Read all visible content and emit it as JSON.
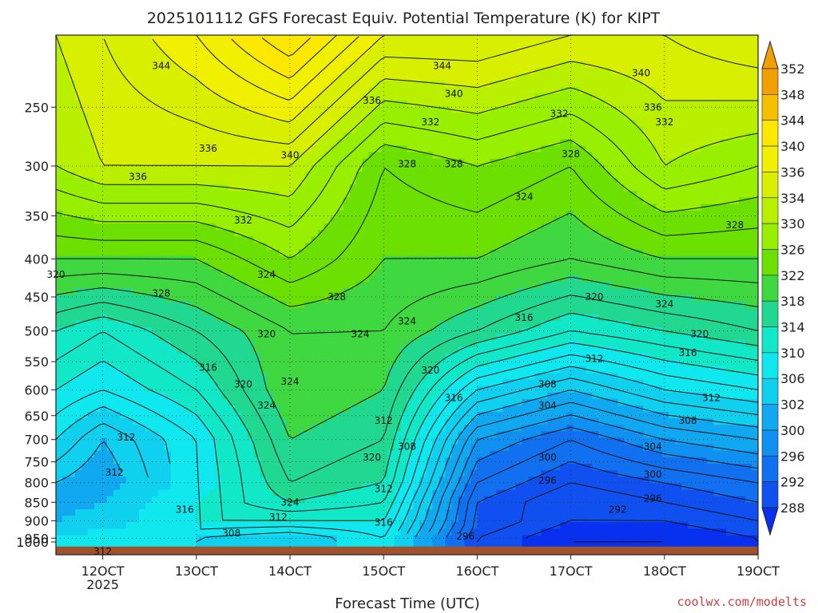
{
  "chart_data": {
    "type": "heatmap",
    "title": "2025101112 GFS Forecast Equiv. Potential Temperature (K) for KIPT",
    "xlabel": "Forecast Time (UTC)",
    "ylabel": "",
    "x_ticks": [
      "12OCT",
      "13OCT",
      "14OCT",
      "15OCT",
      "16OCT",
      "17OCT",
      "18OCT",
      "19OCT"
    ],
    "x_tick_sublabel": "2025",
    "x_range": [
      "11OCT 12Z",
      "19OCT 00Z"
    ],
    "y_ticks": [
      250,
      300,
      350,
      400,
      450,
      500,
      550,
      600,
      650,
      700,
      750,
      800,
      850,
      900,
      950,
      1000
    ],
    "y_range": [
      200,
      1000
    ],
    "y_log_scale": true,
    "grid": true,
    "colorbar": {
      "levels": [
        352,
        348,
        344,
        340,
        336,
        334,
        330,
        326,
        322,
        318,
        314,
        310,
        306,
        302,
        300,
        296,
        292,
        288
      ],
      "colors": [
        "#f0a000",
        "#f5c000",
        "#ffe800",
        "#f0f000",
        "#d8f000",
        "#b8f000",
        "#98f000",
        "#6ce000",
        "#40d840",
        "#20d890",
        "#10e8c8",
        "#10e8f0",
        "#10d0f0",
        "#10a8f0",
        "#1090f0",
        "#1070f0",
        "#1050f0",
        "#0830f0"
      ],
      "extend": "both",
      "placement": "right"
    },
    "profiles": [
      {
        "time": "11OCT 12Z",
        "theta_e": [
          {
            "p": 200,
            "v": 336
          },
          {
            "p": 300,
            "v": 334
          },
          {
            "p": 400,
            "v": 326
          },
          {
            "p": 500,
            "v": 318
          },
          {
            "p": 600,
            "v": 314
          },
          {
            "p": 700,
            "v": 310
          },
          {
            "p": 800,
            "v": 306
          },
          {
            "p": 850,
            "v": 304
          },
          {
            "p": 900,
            "v": 306
          },
          {
            "p": 950,
            "v": 310
          }
        ]
      },
      {
        "time": "12OCT 00Z",
        "theta_e": [
          {
            "p": 200,
            "v": 338
          },
          {
            "p": 300,
            "v": 336
          },
          {
            "p": 400,
            "v": 326
          },
          {
            "p": 500,
            "v": 316
          },
          {
            "p": 600,
            "v": 312
          },
          {
            "p": 700,
            "v": 306
          },
          {
            "p": 800,
            "v": 304
          },
          {
            "p": 850,
            "v": 306
          },
          {
            "p": 900,
            "v": 308
          },
          {
            "p": 950,
            "v": 312
          }
        ]
      },
      {
        "time": "13OCT 00Z",
        "theta_e": [
          {
            "p": 200,
            "v": 342
          },
          {
            "p": 300,
            "v": 336
          },
          {
            "p": 400,
            "v": 326
          },
          {
            "p": 500,
            "v": 320
          },
          {
            "p": 600,
            "v": 316
          },
          {
            "p": 700,
            "v": 312
          },
          {
            "p": 800,
            "v": 312
          },
          {
            "p": 850,
            "v": 314
          },
          {
            "p": 900,
            "v": 314
          },
          {
            "p": 950,
            "v": 310
          }
        ]
      },
      {
        "time": "14OCT 00Z",
        "theta_e": [
          {
            "p": 200,
            "v": 348
          },
          {
            "p": 300,
            "v": 336
          },
          {
            "p": 400,
            "v": 330
          },
          {
            "p": 500,
            "v": 324
          },
          {
            "p": 600,
            "v": 324
          },
          {
            "p": 700,
            "v": 322
          },
          {
            "p": 800,
            "v": 320
          },
          {
            "p": 850,
            "v": 318
          },
          {
            "p": 900,
            "v": 314
          },
          {
            "p": 950,
            "v": 308
          }
        ]
      },
      {
        "time": "15OCT 00Z",
        "theta_e": [
          {
            "p": 200,
            "v": 340
          },
          {
            "p": 300,
            "v": 328
          },
          {
            "p": 400,
            "v": 326
          },
          {
            "p": 500,
            "v": 324
          },
          {
            "p": 600,
            "v": 322
          },
          {
            "p": 700,
            "v": 320
          },
          {
            "p": 800,
            "v": 318
          },
          {
            "p": 850,
            "v": 316
          },
          {
            "p": 900,
            "v": 314
          },
          {
            "p": 950,
            "v": 312
          }
        ]
      },
      {
        "time": "16OCT 00Z",
        "theta_e": [
          {
            "p": 200,
            "v": 340
          },
          {
            "p": 300,
            "v": 330
          },
          {
            "p": 400,
            "v": 326
          },
          {
            "p": 500,
            "v": 320
          },
          {
            "p": 600,
            "v": 310
          },
          {
            "p": 700,
            "v": 302
          },
          {
            "p": 800,
            "v": 298
          },
          {
            "p": 850,
            "v": 296
          },
          {
            "p": 900,
            "v": 296
          },
          {
            "p": 950,
            "v": 294
          }
        ]
      },
      {
        "time": "17OCT 00Z",
        "theta_e": [
          {
            "p": 200,
            "v": 338
          },
          {
            "p": 300,
            "v": 328
          },
          {
            "p": 400,
            "v": 324
          },
          {
            "p": 500,
            "v": 316
          },
          {
            "p": 600,
            "v": 306
          },
          {
            "p": 700,
            "v": 298
          },
          {
            "p": 800,
            "v": 294
          },
          {
            "p": 850,
            "v": 292
          },
          {
            "p": 900,
            "v": 292
          },
          {
            "p": 950,
            "v": 290
          }
        ]
      },
      {
        "time": "18OCT 00Z",
        "theta_e": [
          {
            "p": 200,
            "v": 338
          },
          {
            "p": 300,
            "v": 334
          },
          {
            "p": 400,
            "v": 326
          },
          {
            "p": 500,
            "v": 318
          },
          {
            "p": 600,
            "v": 310
          },
          {
            "p": 700,
            "v": 302
          },
          {
            "p": 800,
            "v": 296
          },
          {
            "p": 850,
            "v": 294
          },
          {
            "p": 900,
            "v": 292
          },
          {
            "p": 950,
            "v": 290
          }
        ]
      },
      {
        "time": "19OCT 00Z",
        "theta_e": [
          {
            "p": 200,
            "v": 340
          },
          {
            "p": 300,
            "v": 332
          },
          {
            "p": 400,
            "v": 326
          },
          {
            "p": 500,
            "v": 320
          },
          {
            "p": 600,
            "v": 312
          },
          {
            "p": 700,
            "v": 304
          },
          {
            "p": 800,
            "v": 298
          },
          {
            "p": 850,
            "v": 296
          },
          {
            "p": 900,
            "v": 294
          },
          {
            "p": 950,
            "v": 292
          }
        ]
      }
    ],
    "contour_labels": [
      {
        "text": "344",
        "time": "12OCT 15Z",
        "p": 220
      },
      {
        "text": "344",
        "time": "15OCT 15Z",
        "p": 220
      },
      {
        "text": "340",
        "time": "17OCT 18Z",
        "p": 225
      },
      {
        "text": "340",
        "time": "15OCT 18Z",
        "p": 240
      },
      {
        "text": "336",
        "time": "14OCT 21Z",
        "p": 245
      },
      {
        "text": "332",
        "time": "15OCT 12Z",
        "p": 262
      },
      {
        "text": "332",
        "time": "16OCT 21Z",
        "p": 255
      },
      {
        "text": "336",
        "time": "17OCT 21Z",
        "p": 250
      },
      {
        "text": "332",
        "time": "18OCT 00Z",
        "p": 262
      },
      {
        "text": "336",
        "time": "13OCT 03Z",
        "p": 284
      },
      {
        "text": "340",
        "time": "14OCT 00Z",
        "p": 290
      },
      {
        "text": "328",
        "time": "17OCT 00Z",
        "p": 289
      },
      {
        "text": "336",
        "time": "12OCT 09Z",
        "p": 310
      },
      {
        "text": "328",
        "time": "15OCT 06Z",
        "p": 298
      },
      {
        "text": "328",
        "time": "15OCT 18Z",
        "p": 298
      },
      {
        "text": "324",
        "time": "16OCT 12Z",
        "p": 330
      },
      {
        "text": "332",
        "time": "13OCT 12Z",
        "p": 355
      },
      {
        "text": "328",
        "time": "18OCT 18Z",
        "p": 360
      },
      {
        "text": "320",
        "time": "11OCT 12Z",
        "p": 420
      },
      {
        "text": "324",
        "time": "13OCT 18Z",
        "p": 420
      },
      {
        "text": "328",
        "time": "12OCT 15Z",
        "p": 445
      },
      {
        "text": "328",
        "time": "14OCT 12Z",
        "p": 450
      },
      {
        "text": "320",
        "time": "17OCT 06Z",
        "p": 450
      },
      {
        "text": "324",
        "time": "18OCT 00Z",
        "p": 460
      },
      {
        "text": "316",
        "time": "16OCT 12Z",
        "p": 480
      },
      {
        "text": "324",
        "time": "15OCT 06Z",
        "p": 485
      },
      {
        "text": "320",
        "time": "13OCT 18Z",
        "p": 505
      },
      {
        "text": "324",
        "time": "14OCT 18Z",
        "p": 505
      },
      {
        "text": "320",
        "time": "18OCT 09Z",
        "p": 505
      },
      {
        "text": "316",
        "time": "18OCT 06Z",
        "p": 535
      },
      {
        "text": "312",
        "time": "17OCT 06Z",
        "p": 545
      },
      {
        "text": "316",
        "time": "13OCT 03Z",
        "p": 560
      },
      {
        "text": "320",
        "time": "15OCT 12Z",
        "p": 565
      },
      {
        "text": "324",
        "time": "14OCT 00Z",
        "p": 585
      },
      {
        "text": "320",
        "time": "13OCT 12Z",
        "p": 590
      },
      {
        "text": "308",
        "time": "16OCT 18Z",
        "p": 590
      },
      {
        "text": "316",
        "time": "15OCT 18Z",
        "p": 615
      },
      {
        "text": "312",
        "time": "18OCT 12Z",
        "p": 615
      },
      {
        "text": "324",
        "time": "13OCT 18Z",
        "p": 630
      },
      {
        "text": "304",
        "time": "16OCT 18Z",
        "p": 630
      },
      {
        "text": "312",
        "time": "15OCT 00Z",
        "p": 660
      },
      {
        "text": "308",
        "time": "18OCT 06Z",
        "p": 660
      },
      {
        "text": "312",
        "time": "12OCT 06Z",
        "p": 695
      },
      {
        "text": "308",
        "time": "15OCT 06Z",
        "p": 715
      },
      {
        "text": "304",
        "time": "17OCT 21Z",
        "p": 715
      },
      {
        "text": "320",
        "time": "14OCT 21Z",
        "p": 740
      },
      {
        "text": "300",
        "time": "16OCT 18Z",
        "p": 740
      },
      {
        "text": "312",
        "time": "12OCT 03Z",
        "p": 775
      },
      {
        "text": "296",
        "time": "16OCT 18Z",
        "p": 795
      },
      {
        "text": "300",
        "time": "17OCT 21Z",
        "p": 780
      },
      {
        "text": "312",
        "time": "15OCT 00Z",
        "p": 815
      },
      {
        "text": "296",
        "time": "17OCT 21Z",
        "p": 840
      },
      {
        "text": "324",
        "time": "14OCT 00Z",
        "p": 850
      },
      {
        "text": "292",
        "time": "17OCT 12Z",
        "p": 870
      },
      {
        "text": "316",
        "time": "12OCT 21Z",
        "p": 870
      },
      {
        "text": "312",
        "time": "13OCT 21Z",
        "p": 890
      },
      {
        "text": "316",
        "time": "15OCT 00Z",
        "p": 905
      },
      {
        "text": "308",
        "time": "13OCT 09Z",
        "p": 935
      },
      {
        "text": "296",
        "time": "15OCT 21Z",
        "p": 945
      },
      {
        "text": "312",
        "time": "12OCT 00Z",
        "p": 990
      }
    ],
    "surface_fill_color": "#a0522d"
  },
  "credit": "coolwx.com/modelts"
}
